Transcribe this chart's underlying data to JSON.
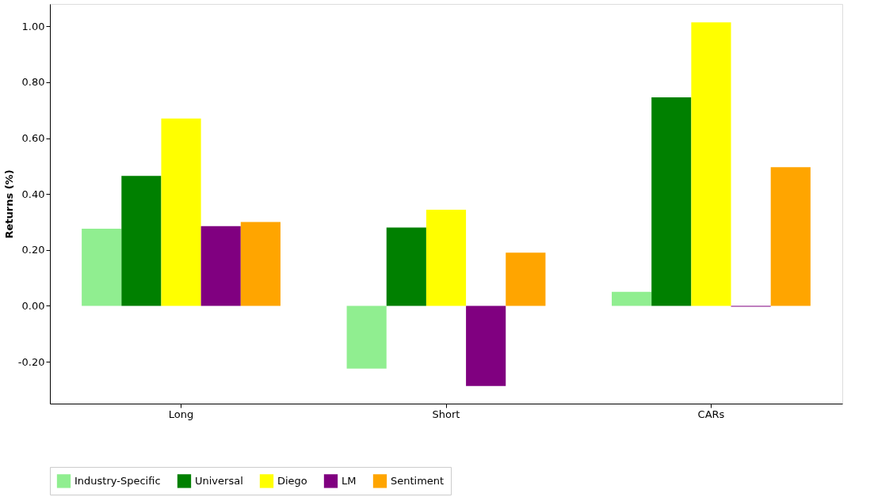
{
  "chart_data": {
    "type": "bar",
    "ylabel": "Returns (%)",
    "categories": [
      "Long",
      "Short",
      "CARs"
    ],
    "series": [
      {
        "name": "Industry-Specific",
        "color": "#90ee90",
        "values": [
          0.276,
          -0.225,
          0.05
        ]
      },
      {
        "name": "Universal",
        "color": "#008000",
        "values": [
          0.465,
          0.28,
          0.746
        ]
      },
      {
        "name": "Diego",
        "color": "#ffff00",
        "values": [
          0.67,
          0.344,
          1.014
        ]
      },
      {
        "name": "LM",
        "color": "#800080",
        "values": [
          0.285,
          -0.287,
          -0.003
        ]
      },
      {
        "name": "Sentiment",
        "color": "#ffa500",
        "values": [
          0.3,
          0.19,
          0.496
        ]
      }
    ],
    "ylim": [
      -0.35,
      1.08
    ],
    "yticks": [
      {
        "value": -0.2,
        "label": "-0.20"
      },
      {
        "value": 0,
        "label": "0.00"
      },
      {
        "value": 0.2,
        "label": "0.20"
      },
      {
        "value": 0.4,
        "label": "0.40"
      },
      {
        "value": 0.6,
        "label": "0.60"
      },
      {
        "value": 0.8,
        "label": "0.80"
      },
      {
        "value": 1.0,
        "label": "1.00"
      }
    ],
    "grid": false,
    "legend": "bottom"
  }
}
